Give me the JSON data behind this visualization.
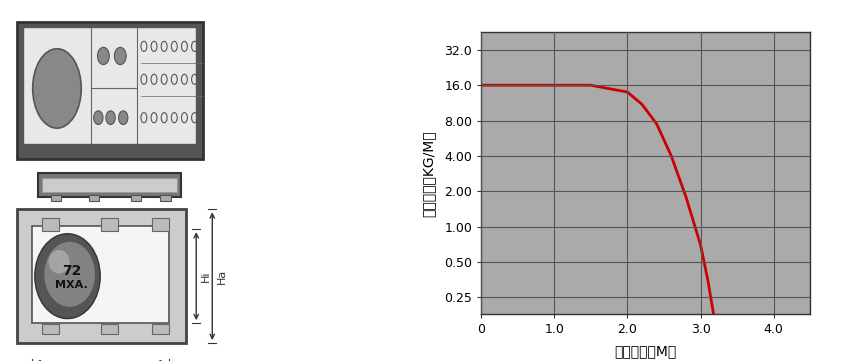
{
  "title": "",
  "xlabel": "架空長度（M）",
  "ylabel": "承載重量（KG/M）",
  "x_curve": [
    0.0,
    0.5,
    1.0,
    1.5,
    2.0,
    2.2,
    2.4,
    2.6,
    2.8,
    3.0,
    3.1,
    3.2,
    3.28,
    3.32
  ],
  "y_curve": [
    16.0,
    16.0,
    16.0,
    16.0,
    14.0,
    11.0,
    7.5,
    4.0,
    1.8,
    0.7,
    0.35,
    0.15,
    0.06,
    0.02
  ],
  "curve_color": "#cc0000",
  "curve_linewidth": 2.0,
  "xlim": [
    0,
    4.5
  ],
  "xticks": [
    0,
    1.0,
    2.0,
    3.0,
    4.0
  ],
  "ytick_values": [
    0.25,
    0.5,
    1.0,
    2.0,
    4.0,
    8.0,
    16.0,
    32.0
  ],
  "ytick_labels": [
    "0.25",
    "0.50",
    "1.00",
    "2.00",
    "4.00",
    "8.00",
    "16.0",
    "32.0"
  ],
  "grid_color": "#555555",
  "grid_linewidth": 0.8,
  "background_color": "#aaaaaa",
  "fig_bg": "#ffffff",
  "font_size_axis_label": 10,
  "font_size_tick": 9
}
